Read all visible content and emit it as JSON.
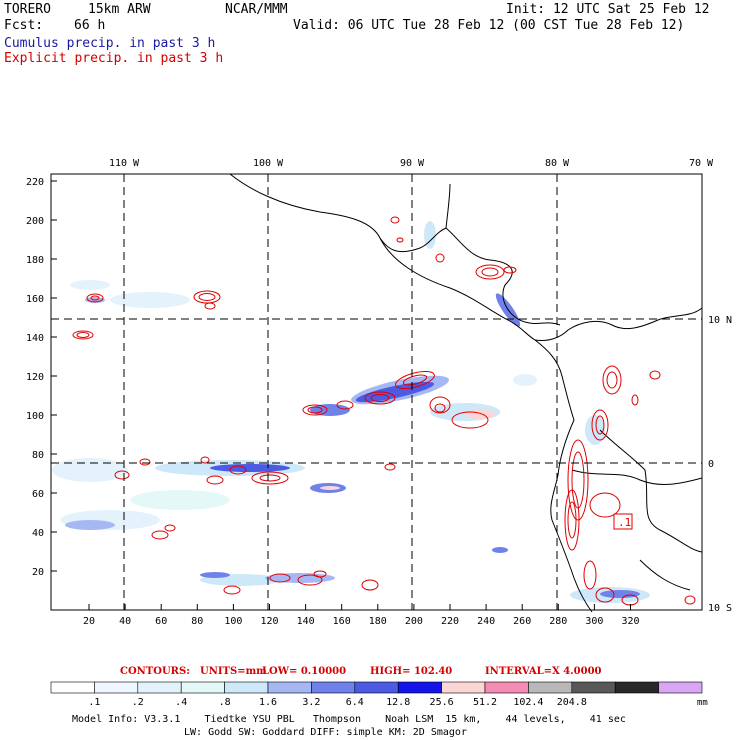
{
  "header": {
    "model_name": "TORERO",
    "resolution": "15km ARW",
    "org": "NCAR/MMM",
    "init": "Init: 12 UTC Sat 25 Feb 12",
    "fcst_label": "Fcst:",
    "fcst_hours": "66 h",
    "valid": "Valid: 06 UTC Tue 28 Feb 12 (00 CST Tue 28 Feb 12)",
    "field1": "Cumulus precip. in past 3 h",
    "field2": "Explicit precip. in past 3 h"
  },
  "colors": {
    "field1": "#1a1aa0",
    "field2": "#d40000",
    "grid": "#000000"
  },
  "map": {
    "lon_labels": [
      "110 W",
      "100 W",
      "90 W",
      "80 W",
      "70 W"
    ],
    "lat_labels_right": [
      "10 N",
      "0",
      "10 S"
    ],
    "y_ticks": [
      "220",
      "200",
      "180",
      "160",
      "140",
      "120",
      "100",
      "80",
      "60",
      "40",
      "20"
    ],
    "x_ticks": [
      "20",
      "40",
      "60",
      "80",
      "100",
      "120",
      "140",
      "160",
      "180",
      "200",
      "220",
      "240",
      "260",
      "280",
      "300",
      "320"
    ],
    "annotation_box": ".1"
  },
  "contours": {
    "label": "CONTOURS:",
    "units": "UNITS=mm",
    "low": "LOW= 0.10000",
    "high": "HIGH= 102.40",
    "interval": "INTERVAL=X 4.0000"
  },
  "colorbar": {
    "labels": [
      ".1",
      ".2",
      ".4",
      ".8",
      "1.6",
      "3.2",
      "6.4",
      "12.8",
      "25.6",
      "51.2",
      "102.4",
      "204.8"
    ],
    "unit": "mm",
    "colors": [
      "#ffffff",
      "#eef6ff",
      "#e4f2fb",
      "#e4f8f8",
      "#cde8f8",
      "#a6b8f4",
      "#6f82ea",
      "#4c5ae4",
      "#1414ea",
      "#fcd6d6",
      "#f48cb4",
      "#b8b8b8",
      "#585858",
      "#282828",
      "#d8a6f4"
    ]
  },
  "footer": {
    "line1": "Model Info: V3.3.1    Tiedtke YSU PBL   Thompson    Noah LSM  15 km,    44 levels,    41 sec",
    "line2": "LW: Godd SW: Goddard DIFF: simple KM: 2D Smagor"
  }
}
